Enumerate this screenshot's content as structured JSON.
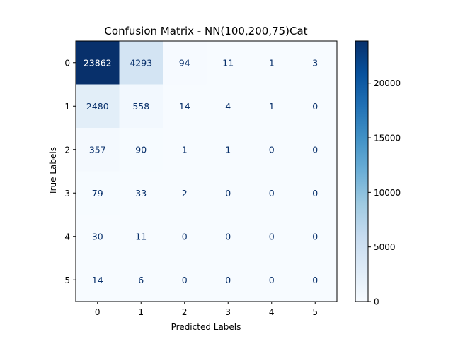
{
  "chart_data": {
    "type": "heatmap",
    "title": "Confusion Matrix - NN(100,200,75)Cat",
    "xlabel": "Predicted Labels",
    "ylabel": "True Labels",
    "x_categories": [
      "0",
      "1",
      "2",
      "3",
      "4",
      "5"
    ],
    "y_categories": [
      "0",
      "1",
      "2",
      "3",
      "4",
      "5"
    ],
    "values": [
      [
        23862,
        4293,
        94,
        11,
        1,
        3
      ],
      [
        2480,
        558,
        14,
        4,
        1,
        0
      ],
      [
        357,
        90,
        1,
        1,
        0,
        0
      ],
      [
        79,
        33,
        2,
        0,
        0,
        0
      ],
      [
        30,
        11,
        0,
        0,
        0,
        0
      ],
      [
        14,
        6,
        0,
        0,
        0,
        0
      ]
    ],
    "colormap": "Blues",
    "colorbar": {
      "range": [
        0,
        23862
      ],
      "ticks": [
        0,
        5000,
        10000,
        15000,
        20000
      ]
    },
    "grid": false
  }
}
